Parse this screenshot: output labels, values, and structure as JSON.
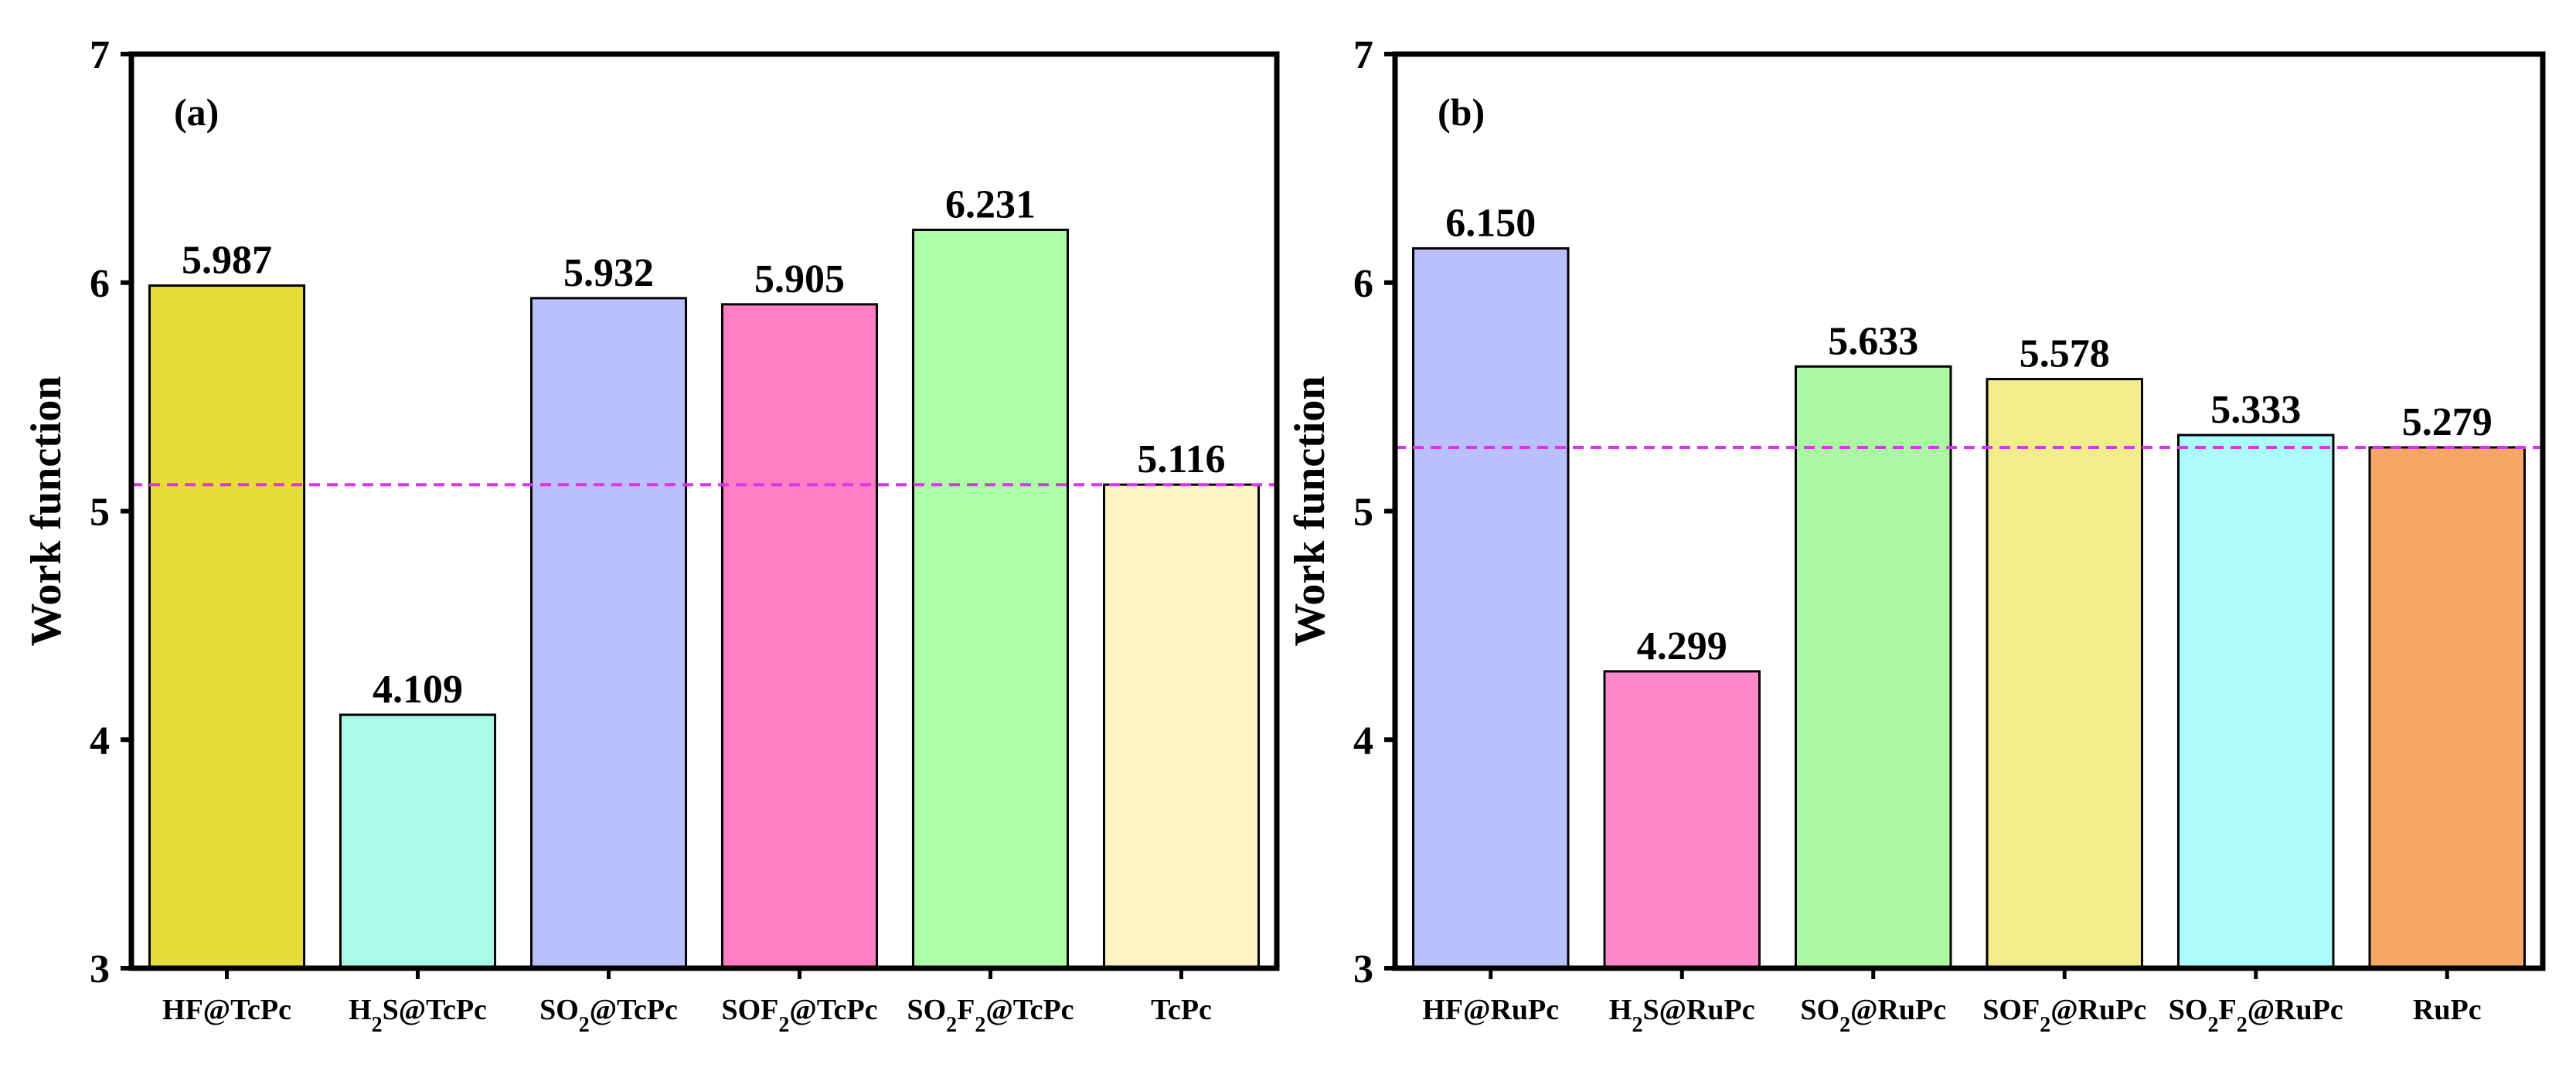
{
  "chart_data": [
    {
      "type": "bar",
      "panel_label": "(a)",
      "ylabel": "Work function",
      "ylim": [
        3,
        7
      ],
      "yticks": [
        "3",
        "4",
        "5",
        "6",
        "7"
      ],
      "categories": [
        {
          "base": "HF@TcPc",
          "parts": [
            {
              "t": "HF@TcPc"
            }
          ]
        },
        {
          "base": "H2S@TcPc",
          "parts": [
            {
              "t": "H"
            },
            {
              "t": "2",
              "sub": true
            },
            {
              "t": "S@TcPc"
            }
          ]
        },
        {
          "base": "SO2@TcPc",
          "parts": [
            {
              "t": "SO"
            },
            {
              "t": "2",
              "sub": true
            },
            {
              "t": "@TcPc"
            }
          ]
        },
        {
          "base": "SOF2@TcPc",
          "parts": [
            {
              "t": "SOF"
            },
            {
              "t": "2",
              "sub": true
            },
            {
              "t": "@TcPc"
            }
          ]
        },
        {
          "base": "SO2F2@TcPc",
          "parts": [
            {
              "t": "SO"
            },
            {
              "t": "2",
              "sub": true
            },
            {
              "t": "F"
            },
            {
              "t": "2",
              "sub": true
            },
            {
              "t": "@TcPc"
            }
          ]
        },
        {
          "base": "TcPc",
          "parts": [
            {
              "t": "TcPc"
            }
          ]
        }
      ],
      "values": [
        5.987,
        4.109,
        5.932,
        5.905,
        6.231,
        5.116
      ],
      "value_labels": [
        "5.987",
        "4.109",
        "5.932",
        "5.905",
        "6.231",
        "5.116"
      ],
      "colors": [
        "#e6dc3a",
        "#a8fbe6",
        "#babffe",
        "#ff7ec4",
        "#aefea8",
        "#fdf4c4"
      ],
      "reference_line": 5.116,
      "reference_color": "#dd33ee"
    },
    {
      "type": "bar",
      "panel_label": "(b)",
      "ylabel": "Work function",
      "ylim": [
        3,
        7
      ],
      "yticks": [
        "3",
        "4",
        "5",
        "6",
        "7"
      ],
      "categories": [
        {
          "base": "HF@RuPc",
          "parts": [
            {
              "t": "HF@RuPc"
            }
          ]
        },
        {
          "base": "H2S@RuPc",
          "parts": [
            {
              "t": "H"
            },
            {
              "t": "2",
              "sub": true
            },
            {
              "t": "S@RuPc"
            }
          ]
        },
        {
          "base": "SO2@RuPc",
          "parts": [
            {
              "t": "SO"
            },
            {
              "t": "2",
              "sub": true
            },
            {
              "t": "@RuPc"
            }
          ]
        },
        {
          "base": "SOF2@RuPc",
          "parts": [
            {
              "t": "SOF"
            },
            {
              "t": "2",
              "sub": true
            },
            {
              "t": "@RuPc"
            }
          ]
        },
        {
          "base": "SO2F2@RuPc",
          "parts": [
            {
              "t": "SO"
            },
            {
              "t": "2",
              "sub": true
            },
            {
              "t": "F"
            },
            {
              "t": "2",
              "sub": true
            },
            {
              "t": "@RuPc"
            }
          ]
        },
        {
          "base": "RuPc",
          "parts": [
            {
              "t": "RuPc"
            }
          ]
        }
      ],
      "values": [
        6.15,
        4.299,
        5.633,
        5.578,
        5.333,
        5.279
      ],
      "value_labels": [
        "6.150",
        "4.299",
        "5.633",
        "5.578",
        "5.333",
        "5.279"
      ],
      "colors": [
        "#babffe",
        "#ff88cc",
        "#aaf8a4",
        "#f3ec8c",
        "#abfbfc",
        "#f4a765"
      ],
      "reference_line": 5.279,
      "reference_color": "#dd33ee"
    }
  ]
}
